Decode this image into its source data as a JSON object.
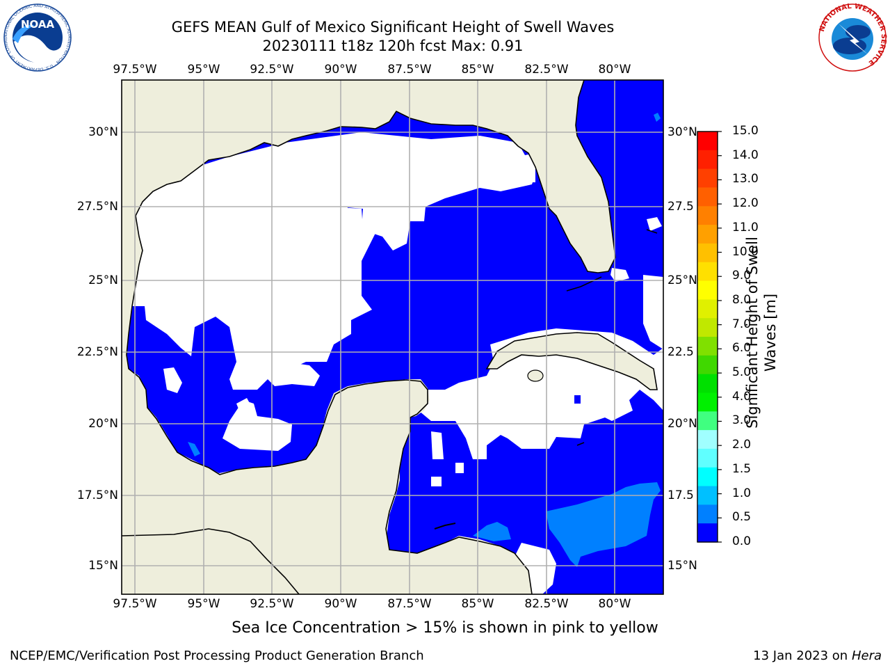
{
  "title": {
    "line1": "GEFS MEAN Gulf of Mexico Significant Height of Swell Waves",
    "line2": "20230111 t18z 120h fcst   Max: 0.91"
  },
  "map": {
    "lon_labels": [
      "97.5°W",
      "95°W",
      "92.5°W",
      "90°W",
      "87.5°W",
      "85°W",
      "82.5°W",
      "80°W"
    ],
    "lat_labels": [
      "30°N",
      "27.5°N",
      "25°N",
      "22.5°N",
      "20°N",
      "17.5°N",
      "15°N"
    ],
    "lat_labels_right": [
      "30°N",
      "27.5",
      "25°N",
      "22.5",
      "20°N",
      "17.5",
      "15°N"
    ],
    "colors": {
      "land": "#eeeedc",
      "low_swell": "#0000ff",
      "swell_0_5": "#0080ff",
      "no_data": "#ffffff",
      "grid": "#b0b0b0",
      "coast": "#000000"
    }
  },
  "colorbar": {
    "label": "Significant Height of Swell Waves [m]",
    "ticks": [
      "15.0",
      "14.0",
      "13.0",
      "12.0",
      "11.0",
      "10.0",
      "9.0",
      "8.0",
      "7.0",
      "6.0",
      "5.0",
      "4.0",
      "3.0",
      "2.0",
      "1.5",
      "1.0",
      "0.5",
      "0.0"
    ],
    "colors": [
      "#ff0000",
      "#ff2000",
      "#ff4000",
      "#ff6000",
      "#ff8000",
      "#ffa000",
      "#ffc000",
      "#ffe000",
      "#ffff00",
      "#e0f000",
      "#c0e800",
      "#80e000",
      "#40d800",
      "#00e000",
      "#00f000",
      "#40ff80",
      "#a0ffff",
      "#60ffff",
      "#00ffff",
      "#00c0ff",
      "#0080ff",
      "#0000ff"
    ]
  },
  "note": "Sea Ice Concentration > 15% is shown in pink to yellow",
  "footer": {
    "left": "NCEP/EMC/Verification Post Processing Product Generation Branch",
    "right_prefix": "13 Jan 2023 on ",
    "right_host": "Hera"
  },
  "logos": {
    "noaa": "NOAA",
    "noaa_ring": "NATIONAL OCEANIC AND ATMOSPHERIC ADMINISTRATION · U.S. DEPARTMENT OF COMMERCE ·",
    "nws_ring": "NATIONAL WEATHER SERVICE"
  }
}
